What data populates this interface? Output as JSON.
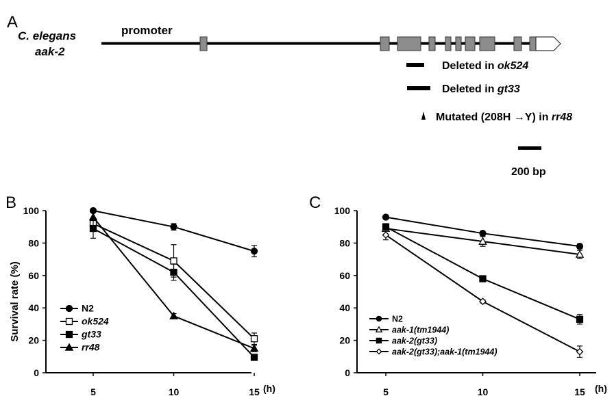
{
  "panel_a": {
    "label": "A",
    "organism": "C. elegans",
    "gene": "aak-2",
    "promoter": "promoter",
    "legend": {
      "del1_prefix": "Deleted in ",
      "del1_allele": "ok524",
      "del2_prefix": "Deleted in ",
      "del2_allele": "gt33",
      "mut_prefix": "Mutated (208H →Y) in ",
      "mut_allele": "rr48"
    },
    "scale": "200 bp"
  },
  "chart_data": [
    {
      "panel": "B",
      "type": "line",
      "ylabel": "Survival rate (%)",
      "xunit": "(h)",
      "x": [
        5,
        10,
        15
      ],
      "ylim": [
        0,
        100
      ],
      "yticks": [
        0,
        20,
        40,
        60,
        80,
        100
      ],
      "grid": false,
      "legend_position": "bottom-left",
      "series": [
        {
          "name": "N2",
          "marker": "circle-filled",
          "values": [
            100,
            90,
            75
          ],
          "errors": [
            0,
            2,
            3.5
          ]
        },
        {
          "name": "ok524",
          "marker": "square-open",
          "values": [
            92,
            69,
            21
          ],
          "errors": [
            2,
            10,
            3.5
          ]
        },
        {
          "name": "gt33",
          "marker": "square-filled",
          "values": [
            89,
            62,
            9.5
          ],
          "errors": [
            6,
            5,
            1.5
          ]
        },
        {
          "name": "rr48",
          "marker": "triangle-filled",
          "values": [
            96,
            35,
            15
          ],
          "errors": [
            0,
            1.5,
            2
          ]
        }
      ]
    },
    {
      "panel": "C",
      "type": "line",
      "ylabel": "",
      "xunit": "(h)",
      "x": [
        5,
        10,
        15
      ],
      "ylim": [
        0,
        100
      ],
      "yticks": [
        0,
        20,
        40,
        60,
        80,
        100
      ],
      "grid": false,
      "legend_position": "bottom-left",
      "series": [
        {
          "name": "N2",
          "marker": "circle-filled",
          "values": [
            96,
            86,
            78
          ],
          "errors": [
            1,
            1,
            1.5
          ]
        },
        {
          "name": "aak-1(tm1944)",
          "marker": "triangle-open",
          "values": [
            89,
            81,
            73
          ],
          "errors": [
            1.5,
            3,
            2.5
          ]
        },
        {
          "name": "aak-2(gt33)",
          "marker": "square-filled",
          "values": [
            90,
            58,
            33
          ],
          "errors": [
            2,
            1.5,
            3
          ]
        },
        {
          "name": "aak-2(gt33);aak-1(tm1944)",
          "marker": "diamond-open",
          "values": [
            85,
            44,
            13
          ],
          "errors": [
            3,
            1,
            3.5
          ]
        }
      ]
    }
  ]
}
